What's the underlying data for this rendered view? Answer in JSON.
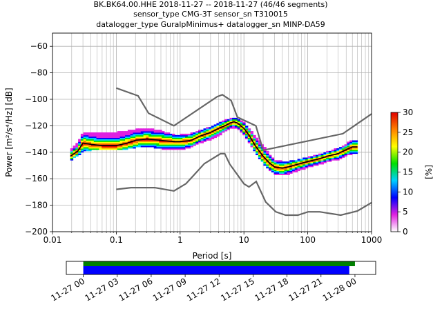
{
  "title": {
    "line1": "BK.BK64.00.HHE   2018-11-27 -- 2018-11-27  (46/46 segments)",
    "line2": "sensor_type CMG-3T sensor_sn T310015",
    "line3": "datalogger_type GuralpMinimus+ datalogger_sn MINP-DA59"
  },
  "chart_data": [
    {
      "type": "heatmap",
      "xscale": "log",
      "xlabel": "Period [s]",
      "ylabel": "Power [m²/s⁴/Hz] [dB]",
      "xlim": [
        0.01,
        1000
      ],
      "ylim": [
        -200,
        -50
      ],
      "xticks": [
        {
          "v": 0.01,
          "label": "0.01"
        },
        {
          "v": 0.1,
          "label": "0.1"
        },
        {
          "v": 1,
          "label": "1"
        },
        {
          "v": 10,
          "label": "10"
        },
        {
          "v": 100,
          "label": "100"
        },
        {
          "v": 1000,
          "label": "1000"
        }
      ],
      "yticks": [
        {
          "v": -60,
          "label": "−60"
        },
        {
          "v": -80,
          "label": "−80"
        },
        {
          "v": -100,
          "label": "−100"
        },
        {
          "v": -120,
          "label": "−120"
        },
        {
          "v": -140,
          "label": "−140"
        },
        {
          "v": -160,
          "label": "−160"
        },
        {
          "v": -180,
          "label": "−180"
        },
        {
          "v": -200,
          "label": "−200"
        }
      ],
      "grid": true,
      "colorbar": {
        "label": "[%]",
        "range": [
          0,
          30
        ],
        "ticks": [
          {
            "v": 0,
            "label": "0"
          },
          {
            "v": 5,
            "label": "5"
          },
          {
            "v": 10,
            "label": "10"
          },
          {
            "v": 15,
            "label": "15"
          },
          {
            "v": 20,
            "label": "20"
          },
          {
            "v": 25,
            "label": "25"
          },
          {
            "v": 30,
            "label": "30"
          }
        ],
        "colors": [
          "#ffffff",
          "#e020e0",
          "#0000ff",
          "#00d0ff",
          "#00e000",
          "#ffff00",
          "#ff8000",
          "#e00000"
        ]
      },
      "mode_curve": {
        "x": [
          0.019,
          0.025,
          0.03,
          0.04,
          0.06,
          0.1,
          0.15,
          0.2,
          0.3,
          0.5,
          0.8,
          1,
          1.5,
          2,
          3,
          4,
          5,
          6,
          7,
          8,
          10,
          12,
          15,
          20,
          25,
          30,
          40,
          50,
          70,
          100,
          150,
          200,
          300,
          400,
          500,
          600
        ],
        "y": [
          -143,
          -139,
          -133,
          -134,
          -135,
          -135,
          -133,
          -131,
          -130,
          -131,
          -132,
          -132,
          -131,
          -128,
          -125,
          -122,
          -120,
          -118,
          -117,
          -118,
          -122,
          -127,
          -135,
          -143,
          -148,
          -151,
          -152,
          -151,
          -149,
          -147,
          -145,
          -143,
          -141,
          -138,
          -136,
          -136
        ]
      },
      "density_band": {
        "x": [
          0.019,
          0.025,
          0.03,
          0.04,
          0.06,
          0.1,
          0.15,
          0.2,
          0.3,
          0.5,
          0.8,
          1,
          1.5,
          2,
          3,
          4,
          5,
          6,
          7,
          8,
          10,
          12,
          15,
          20,
          25,
          30,
          40,
          50,
          70,
          100,
          150,
          200,
          300,
          400,
          500,
          600
        ],
        "upper": [
          -138,
          -133,
          -125,
          -125,
          -125,
          -125,
          -124,
          -123,
          -122,
          -124,
          -127,
          -127,
          -126,
          -124,
          -121,
          -118,
          -116,
          -115,
          -114,
          -115,
          -118,
          -122,
          -128,
          -135,
          -142,
          -146,
          -147,
          -147,
          -146,
          -144,
          -142,
          -140,
          -137,
          -134,
          -131,
          -131
        ],
        "lower": [
          -146,
          -142,
          -139,
          -138,
          -138,
          -138,
          -137,
          -136,
          -135,
          -137,
          -138,
          -138,
          -136,
          -133,
          -130,
          -127,
          -124,
          -122,
          -121,
          -122,
          -127,
          -132,
          -140,
          -148,
          -153,
          -156,
          -157,
          -156,
          -154,
          -151,
          -149,
          -147,
          -145,
          -142,
          -141,
          -141
        ]
      },
      "nhnm": {
        "x": [
          0.1,
          0.22,
          0.32,
          0.8,
          3.8,
          4.6,
          6.3,
          7.9,
          15.4,
          20,
          354.8,
          1000
        ],
        "y": [
          -91.5,
          -97.4,
          -110.5,
          -120,
          -98,
          -96.5,
          -101,
          -113.5,
          -120,
          -138.5,
          -126,
          -111
        ]
      },
      "nlnm": {
        "x": [
          0.1,
          0.17,
          0.4,
          0.8,
          1.24,
          2.4,
          4.3,
          5,
          6,
          10,
          12,
          15.6,
          21.9,
          31.6,
          45,
          70,
          101,
          154,
          328,
          600,
          1000
        ],
        "y": [
          -168,
          -166.7,
          -166.7,
          -169.2,
          -163.7,
          -148.6,
          -141.1,
          -141.1,
          -149,
          -163.8,
          -166.2,
          -162.1,
          -177.5,
          -185,
          -187.5,
          -187.5,
          -185,
          -185,
          -187.5,
          -184.4,
          -178
        ]
      }
    },
    {
      "type": "bar",
      "orientation": "horizontal",
      "xlim": [
        "2018-11-26 22:30",
        "2018-11-28 01:50"
      ],
      "xticks": [
        "11-27 00",
        "11-27 03",
        "11-27 06",
        "11-27 09",
        "11-27 12",
        "11-27 15",
        "11-27 18",
        "11-27 21",
        "11-28 00"
      ],
      "series": [
        {
          "color": "#008000",
          "start": "2018-11-27 00:00",
          "end": "2018-11-28 00:00"
        },
        {
          "color": "#0000ff",
          "start": "2018-11-27 00:00",
          "end": "2018-11-27 23:30"
        }
      ]
    }
  ]
}
